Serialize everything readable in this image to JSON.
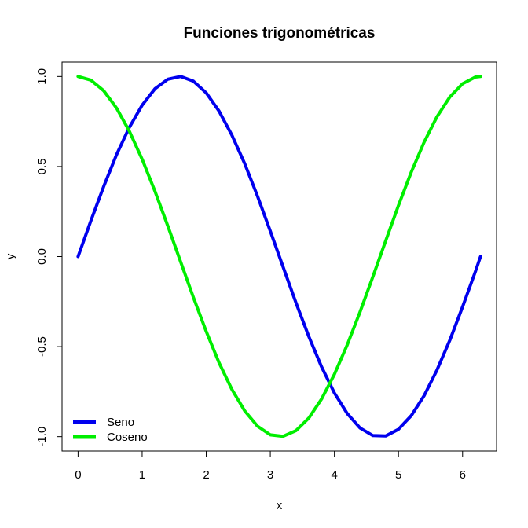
{
  "chart_data": {
    "type": "line",
    "title": "Funciones trigonométricas",
    "xlabel": "x",
    "ylabel": "y",
    "xlim": [
      -0.25,
      6.53
    ],
    "ylim": [
      -1.08,
      1.08
    ],
    "x_ticks": [
      0,
      1,
      2,
      3,
      4,
      5,
      6
    ],
    "y_ticks": [
      -1.0,
      -0.5,
      0.0,
      0.5,
      1.0
    ],
    "x_tick_labels": [
      "0",
      "1",
      "2",
      "3",
      "4",
      "5",
      "6"
    ],
    "y_tick_labels": [
      "-1.0",
      "-0.5",
      "0.0",
      "0.5",
      "1.0"
    ],
    "grid": false,
    "legend_position": "bottom-left",
    "x": [
      0,
      0.2,
      0.4,
      0.6,
      0.8,
      1.0,
      1.2,
      1.4,
      1.6,
      1.8,
      2.0,
      2.2,
      2.4,
      2.6,
      2.8,
      3.0,
      3.2,
      3.4,
      3.6,
      3.8,
      4.0,
      4.2,
      4.4,
      4.6,
      4.8,
      5.0,
      5.2,
      5.4,
      5.6,
      5.8,
      6.0,
      6.2,
      6.28
    ],
    "series": [
      {
        "name": "Seno",
        "color": "#0000ee",
        "values": [
          0.0,
          0.199,
          0.389,
          0.565,
          0.717,
          0.841,
          0.932,
          0.985,
          1.0,
          0.974,
          0.909,
          0.808,
          0.675,
          0.516,
          0.335,
          0.141,
          -0.058,
          -0.256,
          -0.443,
          -0.612,
          -0.757,
          -0.872,
          -0.952,
          -0.994,
          -0.996,
          -0.959,
          -0.883,
          -0.773,
          -0.631,
          -0.465,
          -0.279,
          -0.083,
          0.0
        ]
      },
      {
        "name": "Coseno",
        "color": "#00ee00",
        "values": [
          1.0,
          0.98,
          0.921,
          0.825,
          0.697,
          0.54,
          0.362,
          0.17,
          -0.029,
          -0.227,
          -0.416,
          -0.589,
          -0.737,
          -0.857,
          -0.942,
          -0.99,
          -0.998,
          -0.967,
          -0.897,
          -0.791,
          -0.654,
          -0.49,
          -0.307,
          -0.112,
          0.087,
          0.284,
          0.469,
          0.635,
          0.776,
          0.886,
          0.96,
          0.997,
          1.0
        ]
      }
    ]
  }
}
